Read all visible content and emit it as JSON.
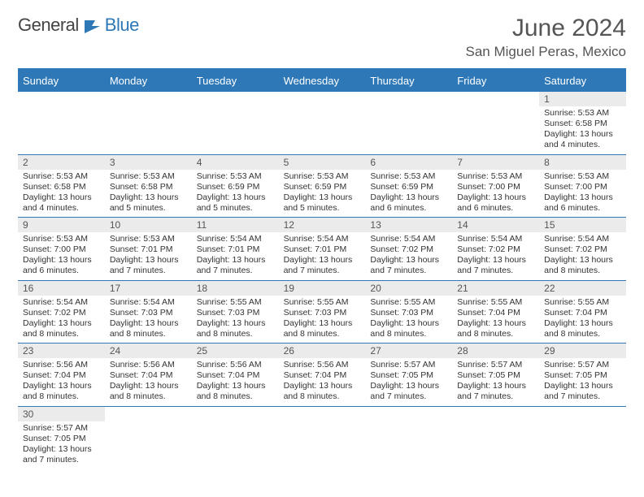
{
  "branding": {
    "logo_text_1": "General",
    "logo_text_2": "Blue",
    "logo_color_dark": "#444444",
    "logo_color_blue": "#2e78b7"
  },
  "header": {
    "title": "June 2024",
    "location": "San Miguel Peras, Mexico"
  },
  "styling": {
    "header_bg": "#2e78b7",
    "header_text": "#ffffff",
    "daynum_bg": "#ebebeb",
    "daynum_text": "#555555",
    "info_text": "#333333",
    "divider": "#2e78b7",
    "title_fontsize": 30,
    "location_fontsize": 17,
    "dayname_fontsize": 13,
    "daynum_fontsize": 12,
    "info_fontsize": 10.5,
    "columns": 7
  },
  "daynames": [
    "Sunday",
    "Monday",
    "Tuesday",
    "Wednesday",
    "Thursday",
    "Friday",
    "Saturday"
  ],
  "weeks": [
    [
      {
        "blank": true
      },
      {
        "blank": true
      },
      {
        "blank": true
      },
      {
        "blank": true
      },
      {
        "blank": true
      },
      {
        "blank": true
      },
      {
        "day": "1",
        "sunrise": "Sunrise: 5:53 AM",
        "sunset": "Sunset: 6:58 PM",
        "daylight1": "Daylight: 13 hours",
        "daylight2": "and 4 minutes."
      }
    ],
    [
      {
        "day": "2",
        "sunrise": "Sunrise: 5:53 AM",
        "sunset": "Sunset: 6:58 PM",
        "daylight1": "Daylight: 13 hours",
        "daylight2": "and 4 minutes."
      },
      {
        "day": "3",
        "sunrise": "Sunrise: 5:53 AM",
        "sunset": "Sunset: 6:58 PM",
        "daylight1": "Daylight: 13 hours",
        "daylight2": "and 5 minutes."
      },
      {
        "day": "4",
        "sunrise": "Sunrise: 5:53 AM",
        "sunset": "Sunset: 6:59 PM",
        "daylight1": "Daylight: 13 hours",
        "daylight2": "and 5 minutes."
      },
      {
        "day": "5",
        "sunrise": "Sunrise: 5:53 AM",
        "sunset": "Sunset: 6:59 PM",
        "daylight1": "Daylight: 13 hours",
        "daylight2": "and 5 minutes."
      },
      {
        "day": "6",
        "sunrise": "Sunrise: 5:53 AM",
        "sunset": "Sunset: 6:59 PM",
        "daylight1": "Daylight: 13 hours",
        "daylight2": "and 6 minutes."
      },
      {
        "day": "7",
        "sunrise": "Sunrise: 5:53 AM",
        "sunset": "Sunset: 7:00 PM",
        "daylight1": "Daylight: 13 hours",
        "daylight2": "and 6 minutes."
      },
      {
        "day": "8",
        "sunrise": "Sunrise: 5:53 AM",
        "sunset": "Sunset: 7:00 PM",
        "daylight1": "Daylight: 13 hours",
        "daylight2": "and 6 minutes."
      }
    ],
    [
      {
        "day": "9",
        "sunrise": "Sunrise: 5:53 AM",
        "sunset": "Sunset: 7:00 PM",
        "daylight1": "Daylight: 13 hours",
        "daylight2": "and 6 minutes."
      },
      {
        "day": "10",
        "sunrise": "Sunrise: 5:53 AM",
        "sunset": "Sunset: 7:01 PM",
        "daylight1": "Daylight: 13 hours",
        "daylight2": "and 7 minutes."
      },
      {
        "day": "11",
        "sunrise": "Sunrise: 5:54 AM",
        "sunset": "Sunset: 7:01 PM",
        "daylight1": "Daylight: 13 hours",
        "daylight2": "and 7 minutes."
      },
      {
        "day": "12",
        "sunrise": "Sunrise: 5:54 AM",
        "sunset": "Sunset: 7:01 PM",
        "daylight1": "Daylight: 13 hours",
        "daylight2": "and 7 minutes."
      },
      {
        "day": "13",
        "sunrise": "Sunrise: 5:54 AM",
        "sunset": "Sunset: 7:02 PM",
        "daylight1": "Daylight: 13 hours",
        "daylight2": "and 7 minutes."
      },
      {
        "day": "14",
        "sunrise": "Sunrise: 5:54 AM",
        "sunset": "Sunset: 7:02 PM",
        "daylight1": "Daylight: 13 hours",
        "daylight2": "and 7 minutes."
      },
      {
        "day": "15",
        "sunrise": "Sunrise: 5:54 AM",
        "sunset": "Sunset: 7:02 PM",
        "daylight1": "Daylight: 13 hours",
        "daylight2": "and 8 minutes."
      }
    ],
    [
      {
        "day": "16",
        "sunrise": "Sunrise: 5:54 AM",
        "sunset": "Sunset: 7:02 PM",
        "daylight1": "Daylight: 13 hours",
        "daylight2": "and 8 minutes."
      },
      {
        "day": "17",
        "sunrise": "Sunrise: 5:54 AM",
        "sunset": "Sunset: 7:03 PM",
        "daylight1": "Daylight: 13 hours",
        "daylight2": "and 8 minutes."
      },
      {
        "day": "18",
        "sunrise": "Sunrise: 5:55 AM",
        "sunset": "Sunset: 7:03 PM",
        "daylight1": "Daylight: 13 hours",
        "daylight2": "and 8 minutes."
      },
      {
        "day": "19",
        "sunrise": "Sunrise: 5:55 AM",
        "sunset": "Sunset: 7:03 PM",
        "daylight1": "Daylight: 13 hours",
        "daylight2": "and 8 minutes."
      },
      {
        "day": "20",
        "sunrise": "Sunrise: 5:55 AM",
        "sunset": "Sunset: 7:03 PM",
        "daylight1": "Daylight: 13 hours",
        "daylight2": "and 8 minutes."
      },
      {
        "day": "21",
        "sunrise": "Sunrise: 5:55 AM",
        "sunset": "Sunset: 7:04 PM",
        "daylight1": "Daylight: 13 hours",
        "daylight2": "and 8 minutes."
      },
      {
        "day": "22",
        "sunrise": "Sunrise: 5:55 AM",
        "sunset": "Sunset: 7:04 PM",
        "daylight1": "Daylight: 13 hours",
        "daylight2": "and 8 minutes."
      }
    ],
    [
      {
        "day": "23",
        "sunrise": "Sunrise: 5:56 AM",
        "sunset": "Sunset: 7:04 PM",
        "daylight1": "Daylight: 13 hours",
        "daylight2": "and 8 minutes."
      },
      {
        "day": "24",
        "sunrise": "Sunrise: 5:56 AM",
        "sunset": "Sunset: 7:04 PM",
        "daylight1": "Daylight: 13 hours",
        "daylight2": "and 8 minutes."
      },
      {
        "day": "25",
        "sunrise": "Sunrise: 5:56 AM",
        "sunset": "Sunset: 7:04 PM",
        "daylight1": "Daylight: 13 hours",
        "daylight2": "and 8 minutes."
      },
      {
        "day": "26",
        "sunrise": "Sunrise: 5:56 AM",
        "sunset": "Sunset: 7:04 PM",
        "daylight1": "Daylight: 13 hours",
        "daylight2": "and 8 minutes."
      },
      {
        "day": "27",
        "sunrise": "Sunrise: 5:57 AM",
        "sunset": "Sunset: 7:05 PM",
        "daylight1": "Daylight: 13 hours",
        "daylight2": "and 7 minutes."
      },
      {
        "day": "28",
        "sunrise": "Sunrise: 5:57 AM",
        "sunset": "Sunset: 7:05 PM",
        "daylight1": "Daylight: 13 hours",
        "daylight2": "and 7 minutes."
      },
      {
        "day": "29",
        "sunrise": "Sunrise: 5:57 AM",
        "sunset": "Sunset: 7:05 PM",
        "daylight1": "Daylight: 13 hours",
        "daylight2": "and 7 minutes."
      }
    ],
    [
      {
        "day": "30",
        "sunrise": "Sunrise: 5:57 AM",
        "sunset": "Sunset: 7:05 PM",
        "daylight1": "Daylight: 13 hours",
        "daylight2": "and 7 minutes."
      },
      {
        "blank": true
      },
      {
        "blank": true
      },
      {
        "blank": true
      },
      {
        "blank": true
      },
      {
        "blank": true
      },
      {
        "blank": true
      }
    ]
  ]
}
